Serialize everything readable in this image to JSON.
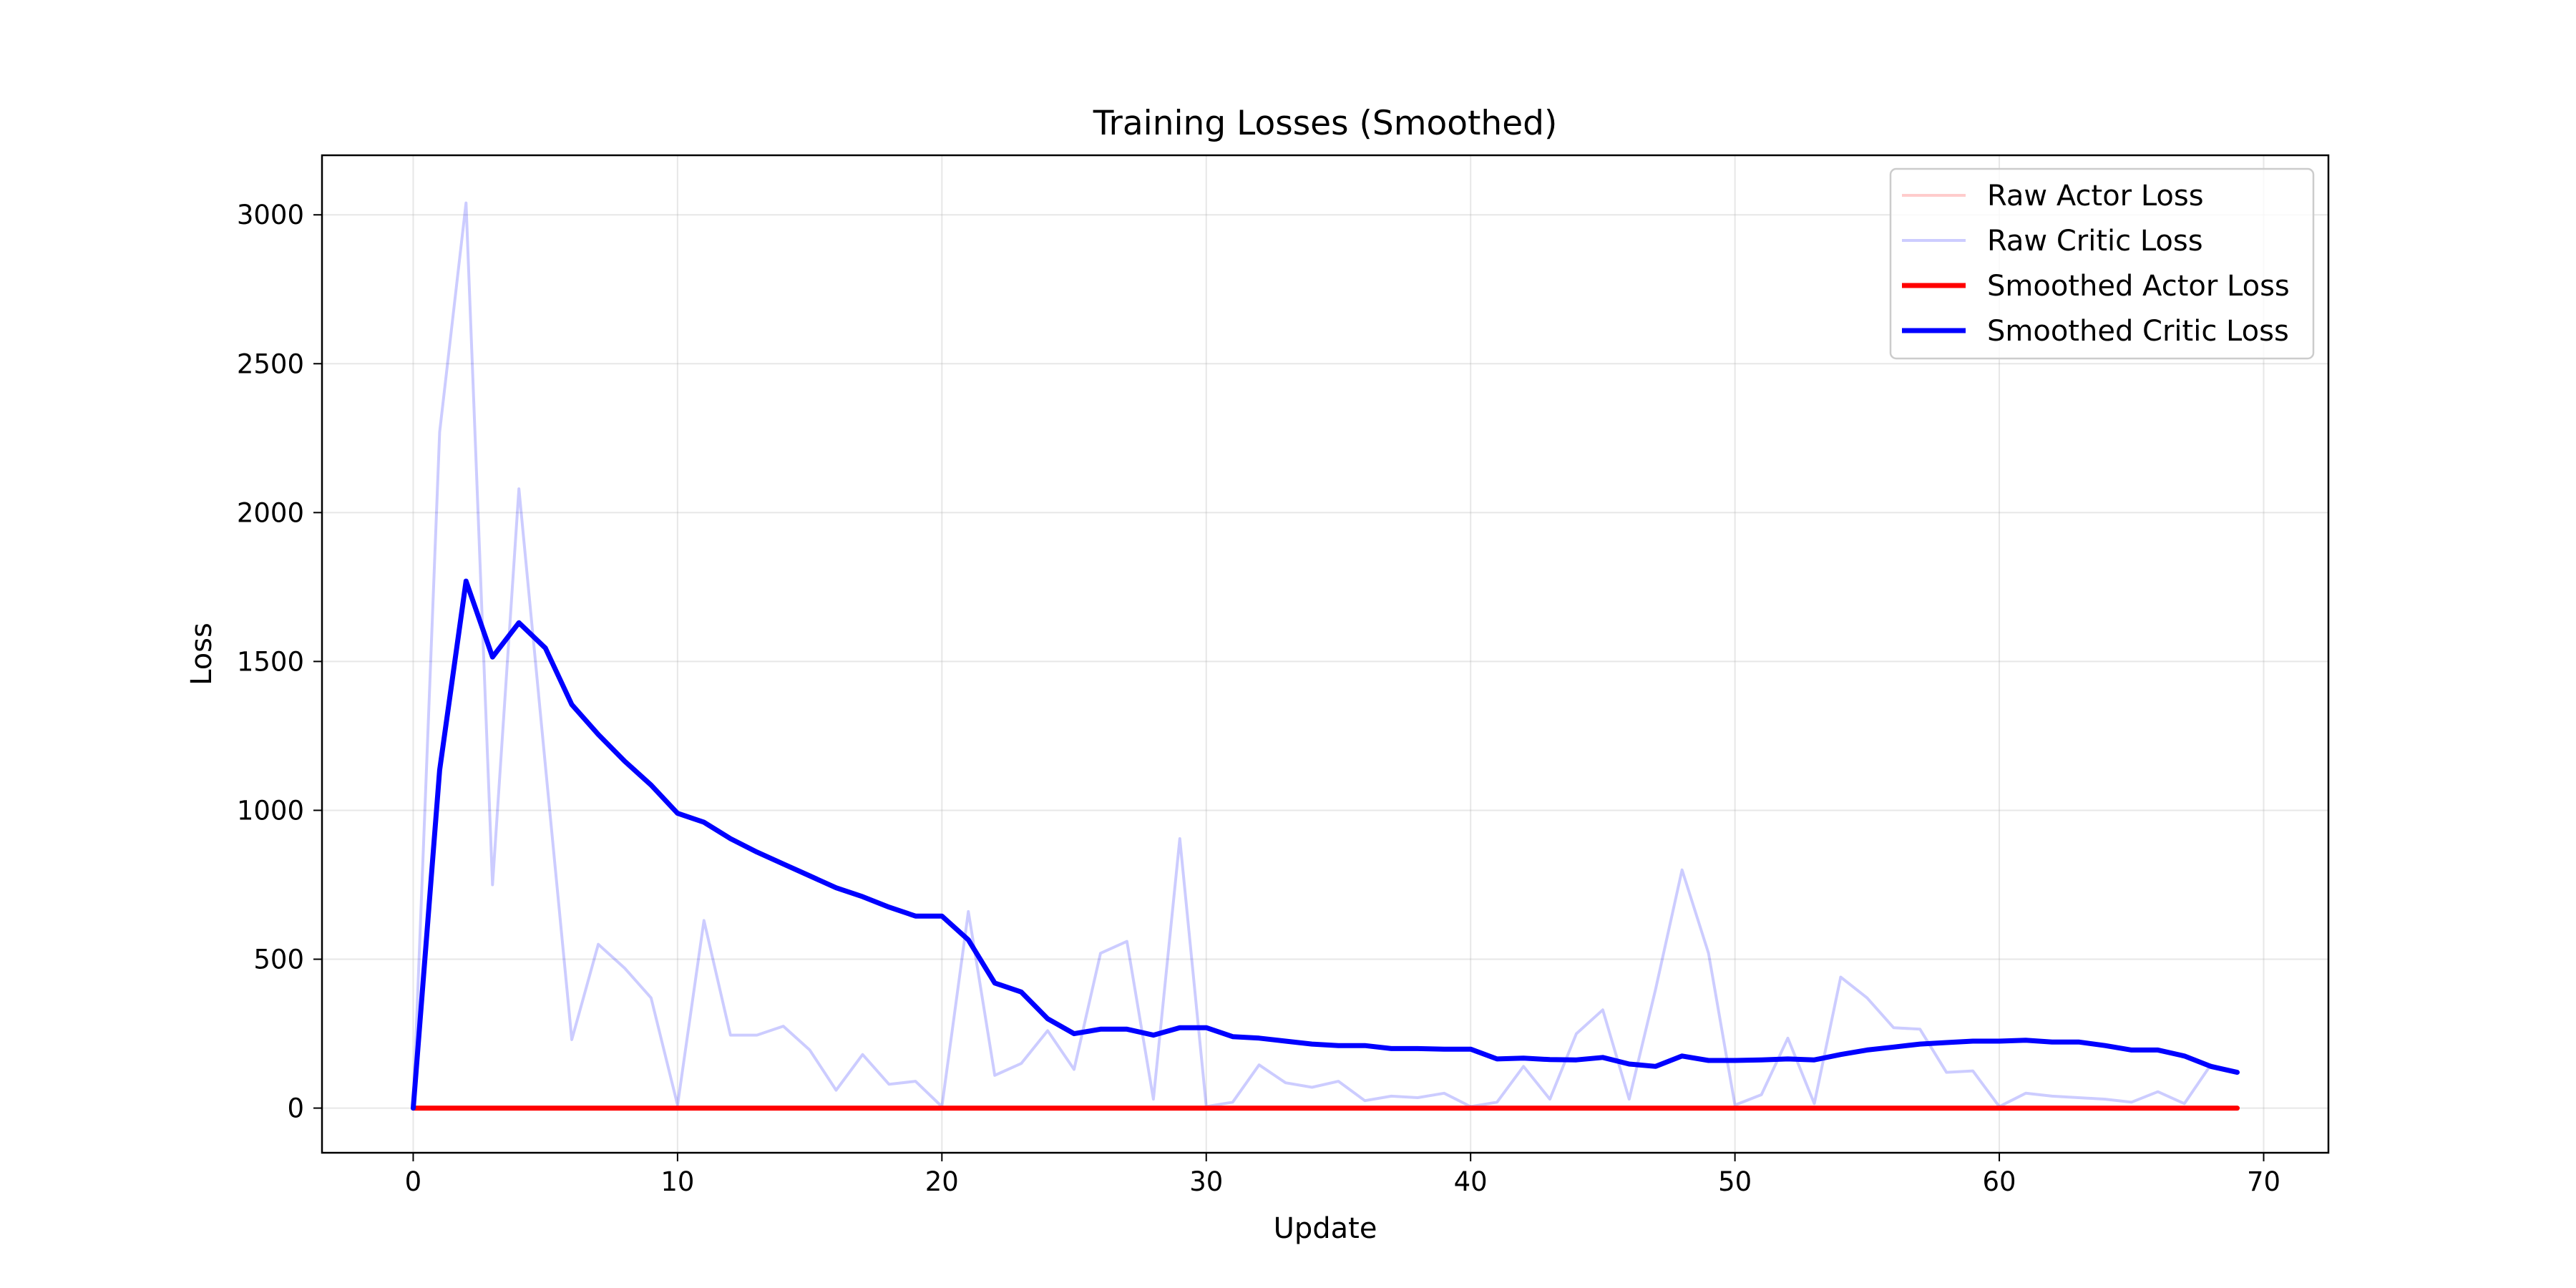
{
  "chart_data": {
    "type": "line",
    "title": "Training Losses (Smoothed)",
    "xlabel": "Update",
    "ylabel": "Loss",
    "xlim": [
      -3.45,
      72.45
    ],
    "ylim": [
      -150,
      3200
    ],
    "xticks": [
      0,
      10,
      20,
      30,
      40,
      50,
      60,
      70
    ],
    "yticks": [
      0,
      500,
      1000,
      1500,
      2000,
      2500,
      3000
    ],
    "grid": true,
    "legend_position": "top-right",
    "series": [
      {
        "name": "Raw Actor Loss",
        "color": "#ff0000",
        "opacity": 0.2,
        "style": "raw",
        "x": [
          0,
          1,
          2,
          3,
          4,
          5,
          6,
          7,
          8,
          9,
          10,
          11,
          12,
          13,
          14,
          15,
          16,
          17,
          18,
          19,
          20,
          21,
          22,
          23,
          24,
          25,
          26,
          27,
          28,
          29,
          30,
          31,
          32,
          33,
          34,
          35,
          36,
          37,
          38,
          39,
          40,
          41,
          42,
          43,
          44,
          45,
          46,
          47,
          48,
          49,
          50,
          51,
          52,
          53,
          54,
          55,
          56,
          57,
          58,
          59,
          60,
          61,
          62,
          63,
          64,
          65,
          66,
          67,
          68,
          69
        ],
        "y": [
          0,
          0,
          0,
          0,
          0,
          0,
          0,
          0,
          0,
          0,
          0,
          0,
          0,
          0,
          0,
          0,
          0,
          0,
          0,
          0,
          0,
          0,
          0,
          0,
          0,
          0,
          0,
          0,
          0,
          0,
          0,
          0,
          0,
          0,
          0,
          0,
          0,
          0,
          0,
          0,
          0,
          0,
          0,
          0,
          0,
          0,
          0,
          0,
          0,
          0,
          0,
          0,
          0,
          0,
          0,
          0,
          0,
          0,
          0,
          0,
          0,
          0,
          0,
          0,
          0,
          0,
          0,
          0,
          0,
          0
        ]
      },
      {
        "name": "Raw Critic Loss",
        "color": "#0000ff",
        "opacity": 0.2,
        "style": "raw",
        "x": [
          0,
          1,
          2,
          3,
          4,
          5,
          6,
          7,
          8,
          9,
          10,
          11,
          12,
          13,
          14,
          15,
          16,
          17,
          18,
          19,
          20,
          21,
          22,
          23,
          24,
          25,
          26,
          27,
          28,
          29,
          30,
          31,
          32,
          33,
          34,
          35,
          36,
          37,
          38,
          39,
          40,
          41,
          42,
          43,
          44,
          45,
          46,
          47,
          48,
          49,
          50,
          51,
          52,
          53,
          54,
          55,
          56,
          57,
          58,
          59,
          60,
          61,
          62,
          63,
          64,
          65,
          66,
          67,
          68,
          69
        ],
        "y": [
          0,
          2270,
          3040,
          750,
          2080,
          1150,
          230,
          550,
          470,
          370,
          10,
          630,
          245,
          245,
          275,
          195,
          60,
          180,
          80,
          90,
          5,
          660,
          110,
          150,
          260,
          130,
          520,
          560,
          30,
          905,
          5,
          20,
          145,
          85,
          70,
          90,
          25,
          40,
          35,
          50,
          5,
          20,
          140,
          30,
          250,
          330,
          30,
          400,
          800,
          520,
          10,
          45,
          235,
          15,
          440,
          370,
          270,
          265,
          120,
          125,
          5,
          50,
          40,
          35,
          30,
          20,
          55,
          15,
          145,
          120
        ]
      },
      {
        "name": "Smoothed Actor Loss",
        "color": "#ff0000",
        "opacity": 1,
        "style": "smoothed",
        "x": [
          0,
          1,
          2,
          3,
          4,
          5,
          6,
          7,
          8,
          9,
          10,
          11,
          12,
          13,
          14,
          15,
          16,
          17,
          18,
          19,
          20,
          21,
          22,
          23,
          24,
          25,
          26,
          27,
          28,
          29,
          30,
          31,
          32,
          33,
          34,
          35,
          36,
          37,
          38,
          39,
          40,
          41,
          42,
          43,
          44,
          45,
          46,
          47,
          48,
          49,
          50,
          51,
          52,
          53,
          54,
          55,
          56,
          57,
          58,
          59,
          60,
          61,
          62,
          63,
          64,
          65,
          66,
          67,
          68,
          69
        ],
        "y": [
          0,
          0,
          0,
          0,
          0,
          0,
          0,
          0,
          0,
          0,
          0,
          0,
          0,
          0,
          0,
          0,
          0,
          0,
          0,
          0,
          0,
          0,
          0,
          0,
          0,
          0,
          0,
          0,
          0,
          0,
          0,
          0,
          0,
          0,
          0,
          0,
          0,
          0,
          0,
          0,
          0,
          0,
          0,
          0,
          0,
          0,
          0,
          0,
          0,
          0,
          0,
          0,
          0,
          0,
          0,
          0,
          0,
          0,
          0,
          0,
          0,
          0,
          0,
          0,
          0,
          0,
          0,
          0,
          0,
          0
        ]
      },
      {
        "name": "Smoothed Critic Loss",
        "color": "#0000ff",
        "opacity": 1,
        "style": "smoothed",
        "x": [
          0,
          1,
          2,
          3,
          4,
          5,
          6,
          7,
          8,
          9,
          10,
          11,
          12,
          13,
          14,
          15,
          16,
          17,
          18,
          19,
          20,
          21,
          22,
          23,
          24,
          25,
          26,
          27,
          28,
          29,
          30,
          31,
          32,
          33,
          34,
          35,
          36,
          37,
          38,
          39,
          40,
          41,
          42,
          43,
          44,
          45,
          46,
          47,
          48,
          49,
          50,
          51,
          52,
          53,
          54,
          55,
          56,
          57,
          58,
          59,
          60,
          61,
          62,
          63,
          64,
          65,
          66,
          67,
          68,
          69
        ],
        "y": [
          0,
          1135,
          1770,
          1515,
          1630,
          1545,
          1355,
          1255,
          1165,
          1085,
          990,
          960,
          905,
          860,
          820,
          780,
          740,
          710,
          675,
          645,
          645,
          565,
          420,
          390,
          300,
          250,
          265,
          265,
          245,
          270,
          270,
          240,
          235,
          225,
          215,
          210,
          210,
          200,
          200,
          198,
          198,
          165,
          168,
          163,
          162,
          170,
          148,
          140,
          175,
          160,
          160,
          162,
          165,
          162,
          180,
          195,
          205,
          215,
          220,
          225,
          225,
          228,
          222,
          222,
          210,
          195,
          195,
          175,
          140,
          120
        ]
      }
    ]
  }
}
